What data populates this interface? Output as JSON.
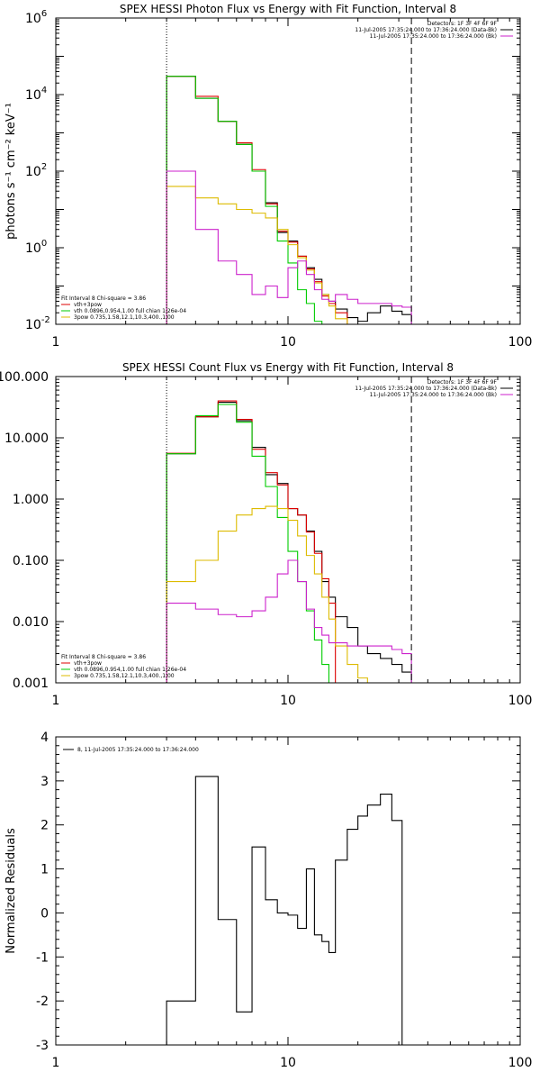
{
  "chart_data": [
    {
      "type": "line",
      "title": "SPEX HESSI Photon Flux vs Energy with Fit Function, Interval 8",
      "xlabel": "",
      "ylabel": "photons s⁻¹ cm⁻² keV⁻¹",
      "xscale": "log",
      "yscale": "log",
      "xlim": [
        1,
        100
      ],
      "ylim": [
        0.01,
        1000000
      ],
      "x_ticks": [
        1,
        10,
        100
      ],
      "x_tick_labels": [
        "1",
        "10",
        "100"
      ],
      "y_ticks": [
        0.01,
        1,
        100,
        10000,
        1000000
      ],
      "y_tick_labels": [
        {
          "base": "10",
          "exp": "-2"
        },
        {
          "base": "10",
          "exp": "0"
        },
        {
          "base": "10",
          "exp": "2"
        },
        {
          "base": "10",
          "exp": "4"
        },
        {
          "base": "10",
          "exp": "6"
        }
      ],
      "vlines": [
        {
          "x": 3,
          "style": "dotted"
        },
        {
          "x": 34,
          "style": "dashed"
        }
      ],
      "legend_top_right": [
        {
          "text": "Detectors: 1F 3F 4F 6F 9F",
          "color": ""
        },
        {
          "text": "11-Jul-2005 17:35:24.000 to 17:36:24.000 (Data-Bk)",
          "color": "#000000"
        },
        {
          "text": "11-Jul-2005 17:35:24.000 to 17:36:24.000 (Bk)",
          "color": "#cc22cc"
        }
      ],
      "legend_bottom_left": [
        {
          "text": "Fit Interval  8    Chi-square = 3.86",
          "color": ""
        },
        {
          "text": "vth+3pow",
          "color": "#dd0000"
        },
        {
          "text": "vth 0.0896,0.954,1.00   full chian 1.26e-04",
          "color": "#00cc00"
        },
        {
          "text": "3pow 0.735,1.58,12.1,10.3,400.,1.00",
          "color": "#ddbb00"
        }
      ],
      "edges": [
        3,
        4,
        5,
        6,
        7,
        8,
        9,
        10,
        11,
        12,
        13,
        14,
        15,
        16,
        18,
        20,
        22,
        25,
        28,
        31,
        34
      ],
      "series": [
        {
          "name": "11-Jul-2005 17:35:24.000 to 17:36:24.000 (Data-Bk)",
          "color": "#000000",
          "values": [
            30000,
            8000,
            2000,
            500,
            100,
            15,
            2.5,
            1.5,
            0.6,
            0.3,
            0.15,
            0.06,
            0.04,
            0.025,
            0.015,
            0.012,
            0.02,
            0.03,
            0.022,
            0.018
          ]
        },
        {
          "name": "vth+3pow",
          "color": "#dd0000",
          "values": [
            30000,
            9000,
            2000,
            550,
            110,
            14,
            2.7,
            1.4,
            0.6,
            0.28,
            0.13,
            0.055,
            0.035,
            0.02
          ]
        },
        {
          "name": "vth",
          "color": "#00cc00",
          "values": [
            30000,
            8000,
            2000,
            500,
            100,
            12,
            1.5,
            0.4,
            0.08,
            0.035,
            0.012,
            0.009
          ]
        },
        {
          "name": "3pow",
          "color": "#ddbb00",
          "values": [
            40,
            20,
            14,
            10,
            8,
            6,
            3,
            1.2,
            0.55,
            0.26,
            0.12,
            0.06,
            0.03,
            0.014,
            0.01,
            0.009
          ]
        },
        {
          "name": "11-Jul-2005 17:35:24.000 to 17:36:24.000 (Bk)",
          "color": "#cc22cc",
          "values": [
            100,
            3,
            0.45,
            0.2,
            0.06,
            0.1,
            0.05,
            0.3,
            0.45,
            0.2,
            0.08,
            0.045,
            0.04,
            0.06,
            0.045,
            0.035,
            0.035,
            0.035,
            0.03,
            0.028
          ]
        }
      ]
    },
    {
      "type": "line",
      "title": "SPEX HESSI Count Flux vs Energy with Fit Function, Interval 8",
      "xlabel": "",
      "ylabel": "",
      "xscale": "log",
      "yscale": "log",
      "xlim": [
        1,
        100
      ],
      "ylim": [
        0.001,
        100
      ],
      "x_ticks": [
        1,
        10,
        100
      ],
      "x_tick_labels": [
        "1",
        "10",
        "100"
      ],
      "y_ticks": [
        0.001,
        0.01,
        0.1,
        1,
        10,
        100
      ],
      "y_tick_labels": [
        {
          "base": "0.001",
          "exp": ""
        },
        {
          "base": "0.010",
          "exp": ""
        },
        {
          "base": "0.100",
          "exp": ""
        },
        {
          "base": "1.000",
          "exp": ""
        },
        {
          "base": "10.000",
          "exp": ""
        },
        {
          "base": "100.000",
          "exp": ""
        }
      ],
      "vlines": [
        {
          "x": 3,
          "style": "dotted"
        },
        {
          "x": 34,
          "style": "dashed"
        }
      ],
      "legend_top_right": [
        {
          "text": "Detectors: 1F 3F 4F 6F 9F",
          "color": ""
        },
        {
          "text": "11-Jul-2005 17:35:24.000 to 17:36:24.000 (Data-Bk)",
          "color": "#000000"
        },
        {
          "text": "11-Jul-2005 17:35:24.000 to 17:36:24.000 (Bk)",
          "color": "#cc22cc"
        }
      ],
      "legend_bottom_left": [
        {
          "text": "Fit Interval  8    Chi-square = 3.86",
          "color": ""
        },
        {
          "text": "vth+3pow",
          "color": "#dd0000"
        },
        {
          "text": "vth 0.0896,0.954,1.00   full chian 1.26e-04",
          "color": "#00cc00"
        },
        {
          "text": "3pow 0.735,1.58,12.1,10.3,400.,1.00",
          "color": "#ddbb00"
        }
      ],
      "edges": [
        3,
        4,
        5,
        6,
        7,
        8,
        9,
        10,
        11,
        12,
        13,
        14,
        15,
        16,
        18,
        20,
        22,
        25,
        28,
        31,
        34
      ],
      "series": [
        {
          "name": "11-Jul-2005 17:35:24.000 to 17:36:24.000 (Data-Bk)",
          "color": "#000000",
          "values": [
            5.5,
            22,
            38,
            19,
            7,
            2.5,
            1.8,
            0.7,
            0.55,
            0.3,
            0.14,
            0.045,
            0.025,
            0.012,
            0.008,
            0.004,
            0.003,
            0.0025,
            0.002,
            0.0015
          ]
        },
        {
          "name": "vth+3pow",
          "color": "#dd0000",
          "values": [
            5.6,
            22,
            40,
            20,
            6.5,
            2.7,
            1.7,
            0.7,
            0.55,
            0.29,
            0.13,
            0.05,
            0.02
          ]
        },
        {
          "name": "vth",
          "color": "#00cc00",
          "values": [
            5.5,
            23,
            35,
            18,
            5,
            1.6,
            0.5,
            0.14,
            0.045,
            0.015,
            0.005,
            0.002
          ]
        },
        {
          "name": "3pow",
          "color": "#ddbb00",
          "values": [
            0.045,
            0.1,
            0.3,
            0.55,
            0.7,
            0.76,
            0.7,
            0.45,
            0.25,
            0.12,
            0.06,
            0.025,
            0.011,
            0.004,
            0.002,
            0.0012
          ]
        },
        {
          "name": "11-Jul-2005 17:35:24.000 to 17:36:24.000 (Bk)",
          "color": "#cc22cc",
          "values": [
            0.02,
            0.016,
            0.013,
            0.012,
            0.015,
            0.025,
            0.06,
            0.1,
            0.045,
            0.016,
            0.008,
            0.006,
            0.0045,
            0.0045,
            0.004,
            0.004,
            0.004,
            0.004,
            0.0035,
            0.003
          ]
        }
      ]
    },
    {
      "type": "line",
      "title": "",
      "xlabel": "",
      "ylabel": "Normalized Residuals",
      "xscale": "log",
      "yscale": "linear",
      "xlim": [
        1,
        100
      ],
      "ylim": [
        -3,
        4
      ],
      "x_ticks": [
        1,
        10,
        100
      ],
      "x_tick_labels": [
        "1",
        "10",
        "100"
      ],
      "y_ticks": [
        -3,
        -2,
        -1,
        0,
        1,
        2,
        3,
        4
      ],
      "y_tick_labels": [
        {
          "base": "-3",
          "exp": ""
        },
        {
          "base": "-2",
          "exp": ""
        },
        {
          "base": "-1",
          "exp": ""
        },
        {
          "base": "0",
          "exp": ""
        },
        {
          "base": "1",
          "exp": ""
        },
        {
          "base": "2",
          "exp": ""
        },
        {
          "base": "3",
          "exp": ""
        },
        {
          "base": "4",
          "exp": ""
        }
      ],
      "vlines": [],
      "legend_top_left": [
        {
          "text": "8, 11-Jul-2005 17:35:24.000 to 17:36:24.000",
          "color": "#000000"
        }
      ],
      "edges": [
        3,
        4,
        5,
        6,
        7,
        8,
        9,
        10,
        11,
        12,
        13,
        14,
        15,
        16,
        18,
        20,
        22,
        25,
        28,
        31,
        34
      ],
      "series": [
        {
          "name": "8, 11-Jul-2005 17:35:24.000 to 17:36:24.000",
          "color": "#000000",
          "values": [
            -2.0,
            3.1,
            -0.15,
            -2.25,
            1.5,
            0.3,
            0.0,
            -0.05,
            -0.35,
            1.0,
            -0.5,
            -0.65,
            -0.9,
            1.2,
            1.9,
            2.2,
            2.45,
            2.7,
            2.1
          ]
        }
      ]
    }
  ]
}
